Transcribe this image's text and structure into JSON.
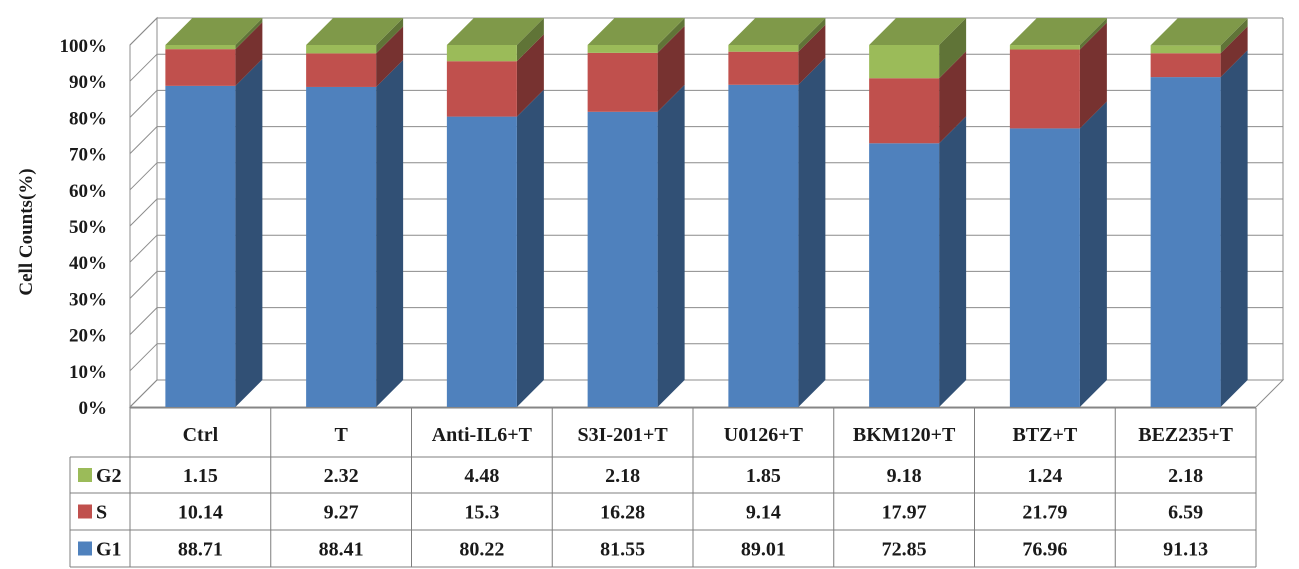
{
  "chart_data": {
    "type": "bar",
    "stacked": true,
    "three_d": true,
    "ylabel": "Cell Counts(%)",
    "ylim": [
      0,
      100
    ],
    "ytick_labels": [
      "0%",
      "10%",
      "20%",
      "30%",
      "40%",
      "50%",
      "60%",
      "70%",
      "80%",
      "90%",
      "100%"
    ],
    "grid": true,
    "categories": [
      "Ctrl",
      "T",
      "Anti-IL6+T",
      "S3I-201+T",
      "U0126+T",
      "BKM120+T",
      "BTZ+T",
      "BEZ235+T"
    ],
    "series": [
      {
        "name": "G2",
        "color": "#9bbb59",
        "values": [
          1.15,
          2.32,
          4.48,
          2.18,
          1.85,
          9.18,
          1.24,
          2.18
        ],
        "value_labels": [
          "1.15",
          "2.32",
          "4.48",
          "2.18",
          "1.85",
          "9.18",
          "1.24",
          "2.18"
        ]
      },
      {
        "name": "S",
        "color": "#c0504d",
        "values": [
          10.14,
          9.27,
          15.3,
          16.28,
          9.14,
          17.97,
          21.79,
          6.59
        ],
        "value_labels": [
          "10.14",
          "9.27",
          "15.3",
          "16.28",
          "9.14",
          "17.97",
          "21.79",
          "6.59"
        ]
      },
      {
        "name": "G1",
        "color": "#4f81bd",
        "values": [
          88.71,
          88.41,
          80.22,
          81.55,
          89.01,
          72.85,
          76.96,
          91.13
        ],
        "value_labels": [
          "88.71",
          "88.41",
          "80.22",
          "81.55",
          "89.01",
          "72.85",
          "76.96",
          "91.13"
        ]
      }
    ],
    "data_table": true
  }
}
